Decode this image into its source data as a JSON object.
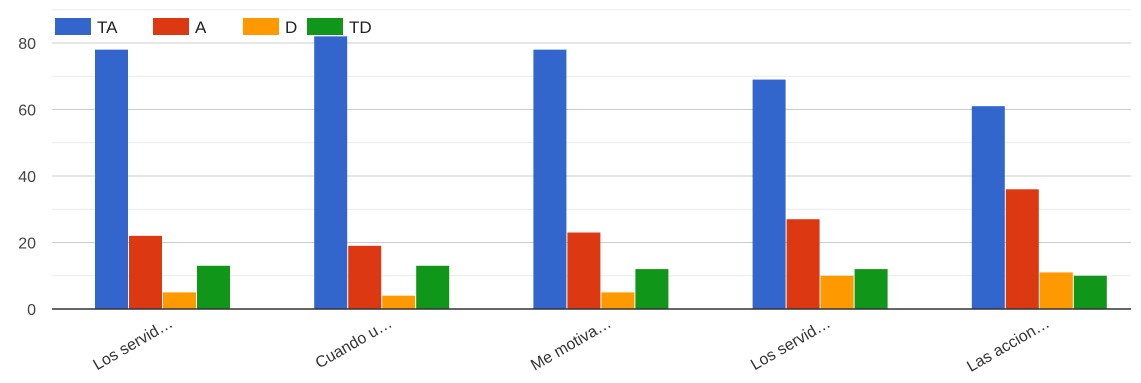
{
  "chart_data": {
    "type": "bar",
    "categories": [
      "Los servid…",
      "Cuando u…",
      "Me motiva…",
      "Los servid…",
      "Las accion…"
    ],
    "series": [
      {
        "name": "TA",
        "color": "#3366cc",
        "values": [
          78,
          82,
          78,
          69,
          61
        ]
      },
      {
        "name": "A",
        "color": "#dc3912",
        "values": [
          22,
          19,
          23,
          27,
          36
        ]
      },
      {
        "name": "D",
        "color": "#ff9900",
        "values": [
          5,
          4,
          5,
          10,
          11
        ]
      },
      {
        "name": "TD",
        "color": "#109618",
        "values": [
          13,
          13,
          12,
          12,
          10
        ]
      }
    ],
    "ylim": [
      0,
      80
    ],
    "yticks": [
      "0",
      "20",
      "40",
      "60",
      "80"
    ],
    "grid": true,
    "legend_position": "top-left",
    "title": "",
    "xlabel": "",
    "ylabel": ""
  }
}
